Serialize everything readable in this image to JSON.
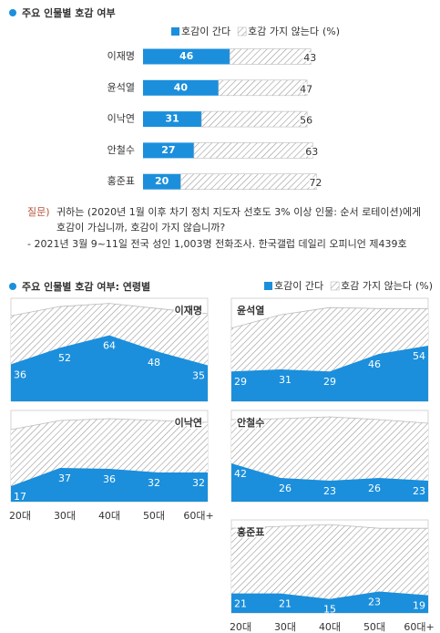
{
  "chart_data": [
    {
      "type": "bar",
      "orientation": "horizontal",
      "title": "주요 인물별 호감 여부",
      "categories": [
        "이재명",
        "윤석열",
        "이낙연",
        "안철수",
        "홍준표"
      ],
      "series": [
        {
          "name": "호감이 간다",
          "color": "#1b8fdc",
          "values": [
            46,
            40,
            31,
            27,
            20
          ]
        },
        {
          "name": "호감 가지 않는다",
          "color": "#9a9a9a",
          "pattern": "hatch",
          "values": [
            43,
            47,
            56,
            63,
            72
          ]
        }
      ],
      "unit": "(%)",
      "xlim": [
        0,
        100
      ]
    },
    {
      "type": "area",
      "title": "주요 인물별 호감 여부: 연령별",
      "categories": [
        "20대",
        "30대",
        "40대",
        "50대",
        "60대+"
      ],
      "series": [
        {
          "name": "호감이 간다",
          "color": "#1b8fdc"
        },
        {
          "name": "호감 가지 않는다",
          "color": "#9a9a9a",
          "pattern": "hatch"
        }
      ],
      "unit": "(%)",
      "ylim": [
        0,
        100
      ],
      "panels": [
        {
          "title": "이재명",
          "values": [
            36,
            52,
            64,
            48,
            35
          ],
          "against": [
            47,
            40,
            31,
            42,
            50
          ]
        },
        {
          "title": "윤석열",
          "values": [
            29,
            31,
            29,
            46,
            54
          ],
          "against": [
            42,
            53,
            62,
            44,
            36
          ]
        },
        {
          "title": "이낙연",
          "values": [
            17,
            37,
            36,
            32,
            32
          ],
          "against": [
            62,
            52,
            55,
            57,
            55
          ]
        },
        {
          "title": "안철수",
          "values": [
            42,
            26,
            23,
            26,
            23
          ],
          "against": [
            48,
            65,
            70,
            64,
            63
          ]
        },
        {
          "title": "홍준표",
          "values": [
            21,
            21,
            15,
            23,
            19
          ],
          "against": [
            70,
            72,
            80,
            68,
            72
          ]
        }
      ]
    }
  ],
  "notes": {
    "label": "질문)",
    "question": [
      "귀하는 (2020년 1월 이후 차기 정치 지도자 선호도 3% 이상 인물: 순서 로테이션)에게",
      "호감이 가십니까, 호감이 가지 않습니까?"
    ],
    "source": "- 2021년 3월 9~11일 전국 성인 1,003명 전화조사. 한국갤럽 데일리 오피니언 제439호"
  }
}
